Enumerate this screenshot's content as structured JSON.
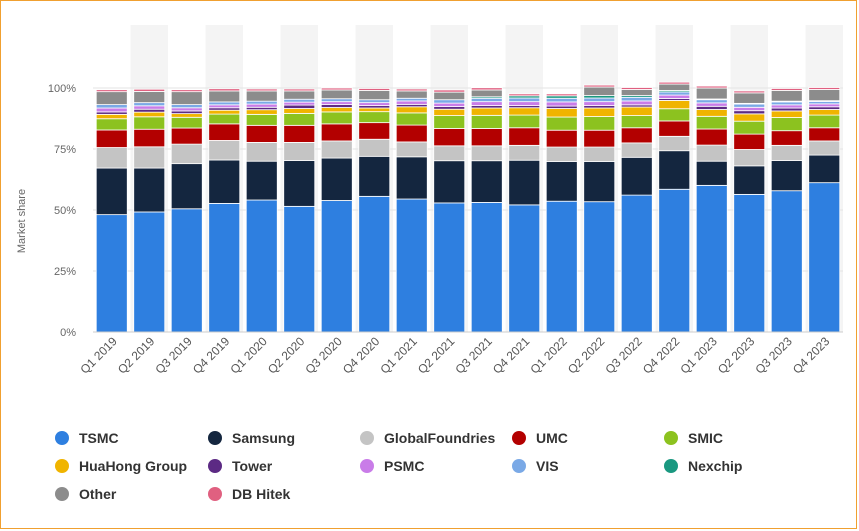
{
  "chart_data": {
    "type": "bar",
    "stacked": true,
    "title": "",
    "xlabel": "",
    "ylabel": "Market share",
    "ylim": [
      0,
      100
    ],
    "yticks": [
      "0%",
      "25%",
      "50%",
      "75%",
      "100%"
    ],
    "categories": [
      "Q1 2019",
      "Q2 2019",
      "Q3 2019",
      "Q4 2019",
      "Q1 2020",
      "Q2 2020",
      "Q3 2020",
      "Q4 2020",
      "Q1 2021",
      "Q2 2021",
      "Q3 2021",
      "Q4 2021",
      "Q1 2022",
      "Q2 2022",
      "Q3 2022",
      "Q4 2022",
      "Q1 2023",
      "Q2 2023",
      "Q3 2023",
      "Q4 2023"
    ],
    "series": [
      {
        "name": "TSMC",
        "color": "#2e7fe0",
        "values": [
          48.1,
          49.2,
          50.5,
          52.7,
          54.1,
          51.5,
          53.9,
          55.6,
          54.5,
          52.9,
          53.1,
          52.1,
          53.6,
          53.4,
          56.1,
          58.5,
          60.1,
          56.4,
          57.9,
          61.2
        ]
      },
      {
        "name": "Samsung",
        "color": "#14263f",
        "values": [
          19.1,
          18.0,
          18.5,
          17.8,
          15.9,
          18.8,
          17.4,
          16.4,
          17.3,
          17.3,
          17.1,
          18.3,
          16.3,
          16.5,
          15.5,
          15.8,
          9.9,
          11.7,
          12.4,
          11.3
        ]
      },
      {
        "name": "GlobalFoundries",
        "color": "#c4c4c4",
        "values": [
          8.4,
          8.7,
          8.0,
          8.0,
          7.7,
          7.4,
          7.0,
          7.0,
          6.1,
          6.1,
          6.1,
          6.1,
          5.9,
          5.9,
          5.9,
          5.9,
          6.6,
          6.7,
          6.2,
          5.8
        ]
      },
      {
        "name": "UMC",
        "color": "#b30000",
        "values": [
          7.2,
          7.2,
          6.6,
          6.8,
          7.0,
          7.0,
          7.0,
          6.8,
          6.9,
          7.1,
          7.1,
          7.2,
          6.9,
          6.9,
          6.2,
          6.3,
          6.6,
          6.3,
          6.0,
          5.4
        ]
      },
      {
        "name": "SMIC",
        "color": "#8cc21f",
        "values": [
          4.6,
          5.1,
          4.4,
          4.0,
          4.5,
          4.9,
          4.9,
          4.5,
          5.0,
          5.3,
          5.4,
          5.2,
          5.4,
          5.6,
          5.0,
          5.0,
          5.2,
          5.3,
          5.4,
          5.2
        ]
      },
      {
        "name": "HuaHong Group",
        "color": "#f0b400",
        "values": [
          1.8,
          1.9,
          1.5,
          1.6,
          1.9,
          2.0,
          1.8,
          1.5,
          2.5,
          2.6,
          3.0,
          3.0,
          3.5,
          3.5,
          3.5,
          3.4,
          2.8,
          3.0,
          2.7,
          2.3
        ]
      },
      {
        "name": "Tower",
        "color": "#5c2a84",
        "values": [
          1.0,
          1.2,
          1.1,
          1.0,
          1.0,
          1.4,
          1.2,
          1.0,
          1.0,
          1.1,
          1.0,
          0.9,
          1.0,
          1.0,
          0.9,
          0.8,
          1.3,
          1.3,
          1.2,
          1.1
        ]
      },
      {
        "name": "PSMC",
        "color": "#c97ce8",
        "values": [
          1.6,
          1.4,
          1.3,
          1.2,
          1.3,
          1.2,
          1.2,
          1.2,
          1.4,
          1.4,
          1.6,
          1.6,
          1.7,
          1.6,
          1.6,
          1.4,
          1.4,
          1.4,
          1.3,
          1.2
        ]
      },
      {
        "name": "VIS",
        "color": "#7aa9e6",
        "values": [
          1.4,
          1.3,
          1.3,
          1.2,
          1.2,
          1.2,
          1.2,
          1.2,
          1.1,
          1.4,
          1.4,
          1.5,
          1.5,
          1.5,
          1.5,
          1.3,
          1.3,
          1.3,
          1.2,
          1.0
        ]
      },
      {
        "name": "Nexchip",
        "color": "#1a9880",
        "values": [
          0,
          0,
          0,
          0,
          0,
          0,
          0,
          0,
          0,
          0,
          0.6,
          0.9,
          1.0,
          1.0,
          0.7,
          0.6,
          0.3,
          0.3,
          0.3,
          0.3
        ]
      },
      {
        "name": "Other",
        "color": "#8c8c8c",
        "values": [
          5.3,
          4.6,
          5.3,
          4.5,
          4.2,
          3.4,
          3.6,
          3.8,
          3.0,
          3.1,
          2.8,
          0,
          0,
          3.5,
          2.5,
          2.6,
          4.5,
          4.3,
          4.4,
          4.6
        ]
      },
      {
        "name": "DB Hitek",
        "color": "#e06080",
        "values": [
          0.8,
          0.9,
          0.8,
          0.9,
          0.8,
          0.8,
          0.8,
          0.8,
          0.8,
          0.9,
          0.9,
          0.8,
          0.8,
          0.8,
          0.8,
          0.8,
          0.8,
          0.8,
          0.8,
          0.8
        ]
      }
    ],
    "legend_position": "bottom"
  }
}
